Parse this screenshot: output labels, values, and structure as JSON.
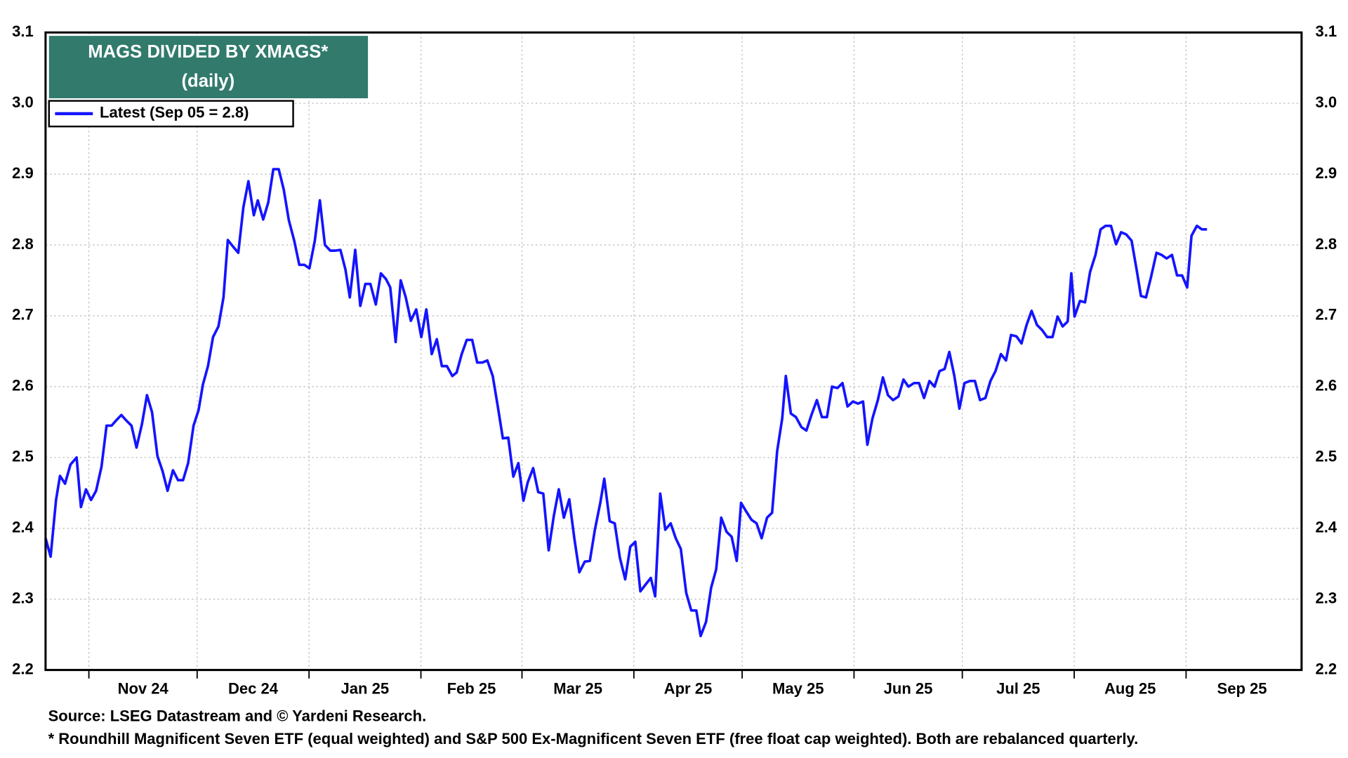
{
  "chart_data": {
    "type": "line",
    "title": "MAGS DIVIDED BY XMAGS*",
    "subtitle": "(daily)",
    "source": "Source: LSEG Datastream and © Yardeni Research.",
    "footnote": "* Roundhill Magnificent Seven ETF (equal weighted) and S&P 500 Ex-Magnificent Seven ETF (free float cap weighted). Both are rebalanced quarterly.",
    "xlim": [
      0,
      348
    ],
    "xticks": [
      {
        "value": 12,
        "label": "Nov 24"
      },
      {
        "value": 42,
        "label": "Dec 24"
      },
      {
        "value": 73,
        "label": "Jan 25"
      },
      {
        "value": 104,
        "label": "Feb 25"
      },
      {
        "value": 132,
        "label": "Mar 25"
      },
      {
        "value": 163,
        "label": "Apr 25"
      },
      {
        "value": 193,
        "label": "May 25"
      },
      {
        "value": 224,
        "label": "Jun 25"
      },
      {
        "value": 254,
        "label": "Jul 25"
      },
      {
        "value": 285,
        "label": "Aug 25"
      },
      {
        "value": 316,
        "label": "Sep 25"
      }
    ],
    "ylim": [
      2.2,
      3.1
    ],
    "yticks": [
      2.2,
      2.3,
      2.4,
      2.5,
      2.6,
      2.7,
      2.8,
      2.9,
      {
        "value": 3,
        "label": "3.0"
      },
      3.1
    ],
    "grid": true,
    "legend": "top-left",
    "x": [
      0,
      1.4,
      2.9,
      4,
      5.4,
      6.9,
      8.6,
      9.8,
      11.2,
      12.6,
      14,
      15.5,
      16.9,
      18.3,
      19.5,
      21,
      22.4,
      23.8,
      25.2,
      26.7,
      28.1,
      29.5,
      31,
      32.4,
      33.8,
      35.3,
      36.7,
      38.1,
      39.5,
      41,
      42.4,
      43.6,
      45,
      46.4,
      47.9,
      49.3,
      50.5,
      51.9,
      53.4,
      54.8,
      56.2,
      57.7,
      58.8,
      60.3,
      61.7,
      63.1,
      64.6,
      66,
      67.4,
      68.9,
      70.3,
      71.7,
      73.1,
      74.6,
      76,
      77.4,
      78.9,
      80.3,
      81.7,
      83.1,
      84.3,
      85.8,
      87.2,
      88.6,
      90,
      91.5,
      92.9,
      94.3,
      95.5,
      97,
      98.4,
      99.8,
      101.2,
      102.7,
      104.1,
      105.5,
      107,
      108.4,
      109.8,
      111.2,
      112.7,
      113.9,
      115.3,
      116.7,
      118.2,
      119.6,
      121,
      122.4,
      123.9,
      125.3,
      126.7,
      128.2,
      129.6,
      131,
      132.4,
      133.6,
      135.1,
      136.5,
      137.9,
      139.4,
      140.8,
      142.2,
      143.6,
      145.1,
      146.5,
      147.9,
      149.4,
      150.8,
      152.2,
      153.7,
      154.8,
      156.3,
      157.7,
      159.1,
      160.6,
      162,
      163.4,
      164.8,
      166.3,
      167.7,
      168.9,
      170.3,
      171.7,
      173.2,
      174.6,
      176,
      177.5,
      178.9,
      180.3,
      181.5,
      183,
      184.4,
      185.8,
      187.2,
      188.7,
      190.1,
      191.5,
      192.7,
      194.1,
      195.6,
      197,
      198.4,
      199.9,
      201.3,
      202.7,
      204.1,
      205.1,
      206.5,
      207.9,
      209.4,
      210.8,
      212.2,
      213.7,
      215.1,
      216.5,
      217.9,
      219.4,
      220.8,
      222.2,
      223.7,
      225.1,
      226.5,
      227.7,
      229.1,
      230.6,
      232,
      233.4,
      234.8,
      236.3,
      237.7,
      239.1,
      240.6,
      242,
      243.4,
      244.9,
      246.3,
      247.7,
      249.1,
      250.4,
      251.8,
      253.2,
      254.6,
      256.1,
      257.5,
      258.9,
      260.4,
      261.8,
      263.2,
      264.7,
      266.1,
      267.5,
      269,
      270.4,
      271.8,
      273.2,
      274.7,
      276.1,
      277.5,
      279,
      280.4,
      281.8,
      283.2,
      284.2,
      285.1,
      286.6,
      288,
      289.4,
      290.9,
      292.3,
      293.7,
      295.2,
      296.6,
      298,
      299.4,
      300.9,
      302.3,
      303.5,
      304.9,
      306.3,
      307.8,
      309.2,
      310.6,
      312.1,
      313.5,
      314.9,
      316.3,
      317.5,
      319,
      320.4,
      321.8
    ],
    "series": [
      {
        "name": "Latest (Sep 05 = 2.8)",
        "color": "#1414ff",
        "values": [
          2.386,
          2.36,
          2.44,
          2.474,
          2.463,
          2.49,
          2.5,
          2.43,
          2.455,
          2.44,
          2.453,
          2.487,
          2.545,
          2.545,
          2.552,
          2.56,
          2.552,
          2.545,
          2.514,
          2.547,
          2.588,
          2.564,
          2.502,
          2.481,
          2.453,
          2.482,
          2.468,
          2.468,
          2.492,
          2.545,
          2.567,
          2.603,
          2.629,
          2.67,
          2.685,
          2.726,
          2.807,
          2.798,
          2.789,
          2.853,
          2.89,
          2.842,
          2.863,
          2.836,
          2.86,
          2.907,
          2.907,
          2.878,
          2.835,
          2.806,
          2.772,
          2.772,
          2.767,
          2.806,
          2.863,
          2.8,
          2.792,
          2.792,
          2.793,
          2.765,
          2.726,
          2.793,
          2.714,
          2.745,
          2.745,
          2.716,
          2.76,
          2.752,
          2.74,
          2.663,
          2.75,
          2.726,
          2.693,
          2.709,
          2.67,
          2.709,
          2.646,
          2.667,
          2.629,
          2.629,
          2.615,
          2.62,
          2.646,
          2.666,
          2.666,
          2.634,
          2.634,
          2.637,
          2.615,
          2.572,
          2.527,
          2.528,
          2.473,
          2.492,
          2.439,
          2.465,
          2.485,
          2.451,
          2.449,
          2.369,
          2.417,
          2.455,
          2.415,
          2.441,
          2.386,
          2.338,
          2.353,
          2.354,
          2.398,
          2.436,
          2.47,
          2.41,
          2.407,
          2.359,
          2.328,
          2.374,
          2.381,
          2.311,
          2.321,
          2.33,
          2.304,
          2.449,
          2.398,
          2.407,
          2.386,
          2.371,
          2.309,
          2.284,
          2.284,
          2.248,
          2.268,
          2.316,
          2.342,
          2.415,
          2.395,
          2.388,
          2.354,
          2.436,
          2.424,
          2.412,
          2.407,
          2.386,
          2.415,
          2.422,
          2.509,
          2.555,
          2.615,
          2.562,
          2.557,
          2.543,
          2.538,
          2.56,
          2.581,
          2.557,
          2.557,
          2.6,
          2.598,
          2.605,
          2.572,
          2.579,
          2.576,
          2.579,
          2.518,
          2.555,
          2.581,
          2.613,
          2.588,
          2.581,
          2.586,
          2.61,
          2.6,
          2.605,
          2.605,
          2.584,
          2.608,
          2.6,
          2.622,
          2.625,
          2.649,
          2.615,
          2.569,
          2.605,
          2.608,
          2.608,
          2.581,
          2.584,
          2.608,
          2.622,
          2.646,
          2.637,
          2.673,
          2.671,
          2.661,
          2.687,
          2.707,
          2.687,
          2.68,
          2.67,
          2.67,
          2.699,
          2.685,
          2.692,
          2.76,
          2.699,
          2.721,
          2.719,
          2.762,
          2.786,
          2.822,
          2.827,
          2.827,
          2.801,
          2.818,
          2.815,
          2.806,
          2.765,
          2.728,
          2.726,
          2.755,
          2.789,
          2.786,
          2.781,
          2.786,
          2.757,
          2.757,
          2.74,
          2.813,
          2.827,
          2.822,
          2.822
        ]
      }
    ]
  }
}
